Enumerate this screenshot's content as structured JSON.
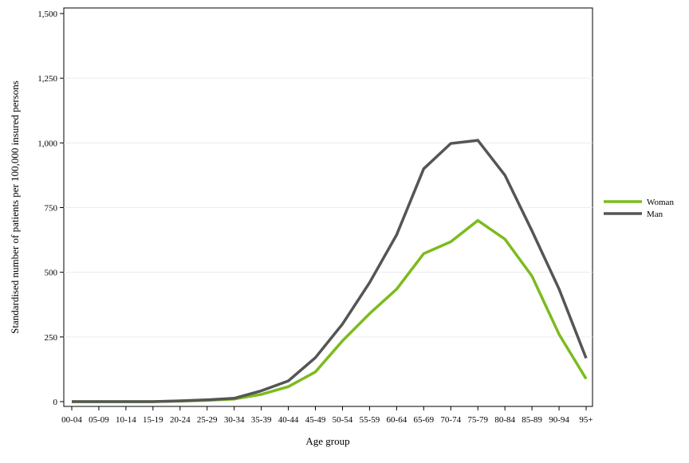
{
  "chart_data": {
    "type": "line",
    "xlabel": "Age group",
    "ylabel": "Standardised number of patients per 100,000 insured persons",
    "ylim": [
      0,
      1500
    ],
    "yticks": [
      0,
      250,
      500,
      750,
      1000,
      1250,
      1500
    ],
    "ytick_labels": [
      "0",
      "250",
      "500",
      "750",
      "1,000",
      "1,250",
      "1,500"
    ],
    "grid": "horizontal",
    "legend_position": "right",
    "categories": [
      "00-04",
      "05-09",
      "10-14",
      "15-19",
      "20-24",
      "25-29",
      "30-34",
      "35-39",
      "40-44",
      "45-49",
      "50-54",
      "55-59",
      "60-64",
      "65-69",
      "70-74",
      "75-79",
      "80-84",
      "85-89",
      "90-94",
      "95+"
    ],
    "series": [
      {
        "name": "Woman",
        "color": "#7cbb1e",
        "values": [
          0,
          0,
          0,
          0,
          2,
          5,
          10,
          28,
          58,
          115,
          235,
          340,
          435,
          572,
          618,
          700,
          628,
          485,
          260,
          88
        ]
      },
      {
        "name": "Man",
        "color": "#555555",
        "values": [
          0,
          0,
          0,
          0,
          3,
          7,
          13,
          42,
          80,
          170,
          300,
          460,
          645,
          900,
          998,
          1010,
          875,
          660,
          435,
          168
        ]
      }
    ]
  }
}
